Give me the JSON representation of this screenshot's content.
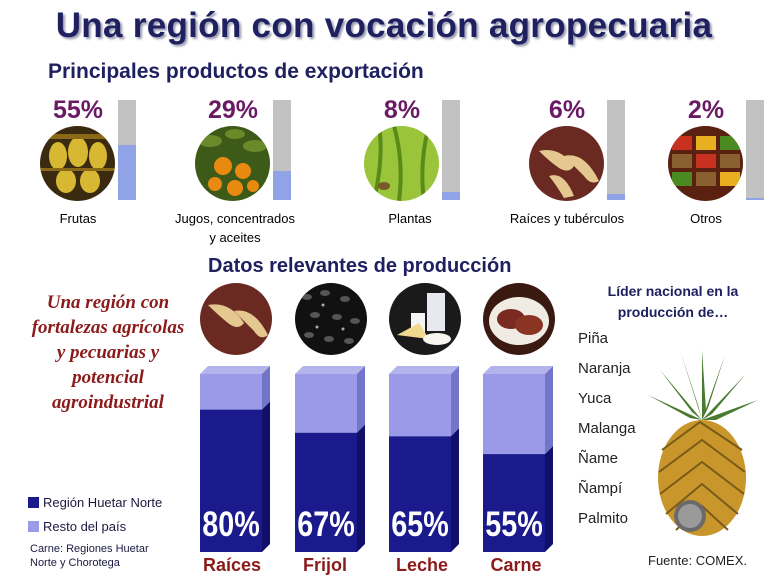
{
  "title": "Una región con vocación agropecuaria",
  "exports": {
    "heading": "Principales productos de exportación",
    "items": [
      {
        "pct_label": "55%",
        "value": 55,
        "label_line1": "Frutas",
        "label_line2": "",
        "photo_icon": "bananas-photo-icon"
      },
      {
        "pct_label": "29%",
        "value": 29,
        "label_line1": "Jugos, concentrados",
        "label_line2": "y aceites",
        "photo_icon": "oranges-photo-icon"
      },
      {
        "pct_label": "8%",
        "value": 8,
        "label_line1": "Plantas",
        "label_line2": "",
        "photo_icon": "plant-photo-icon"
      },
      {
        "pct_label": "6%",
        "value": 6,
        "label_line1": "Raíces y tubérculos",
        "label_line2": "",
        "photo_icon": "roots-photo-icon"
      },
      {
        "pct_label": "2%",
        "value": 2,
        "label_line1": "Otros",
        "label_line2": "",
        "photo_icon": "market-photo-icon"
      }
    ]
  },
  "production": {
    "heading": "Datos relevantes de producción",
    "slogan": [
      "Una región con",
      "fortalezas agrícolas",
      "y pecuarias y",
      "potencial",
      "agroindustrial"
    ],
    "bars": [
      {
        "label": "Raíces",
        "pct_label": "80%",
        "value": 80,
        "photo_icon": "roots-photo-icon"
      },
      {
        "label": "Frijol",
        "pct_label": "67%",
        "value": 67,
        "photo_icon": "beans-photo-icon"
      },
      {
        "label": "Leche",
        "pct_label": "65%",
        "value": 65,
        "photo_icon": "milk-photo-icon"
      },
      {
        "label": "Carne",
        "pct_label": "55%",
        "value": 55,
        "photo_icon": "meat-photo-icon"
      }
    ],
    "legend": [
      {
        "label": "Región Huetar Norte",
        "color": "#1a1a8c"
      },
      {
        "label": "Resto del país",
        "color": "#9a9ae8"
      }
    ],
    "note_line1": "Carne: Regiones Huetar",
    "note_line2": "Norte y Chorotega"
  },
  "leader": {
    "title_line1": "Líder nacional  en la",
    "title_line2": "producción de…",
    "items": [
      "Piña",
      "Naranja",
      "Yuca",
      "Malanga",
      "Ñame",
      "Ñampí",
      "Palmito"
    ],
    "image_icon": "pineapple-icon"
  },
  "source": "Fuente: COMEX.",
  "colors": {
    "title": "#1f2060",
    "pct": "#6b1a66",
    "slogan": "#8b1a1a",
    "bar_dark": "#1a1a8c",
    "bar_light": "#9a9ae8",
    "export_fill": "#8fa3e6",
    "export_bg": "#c2c2c2"
  }
}
